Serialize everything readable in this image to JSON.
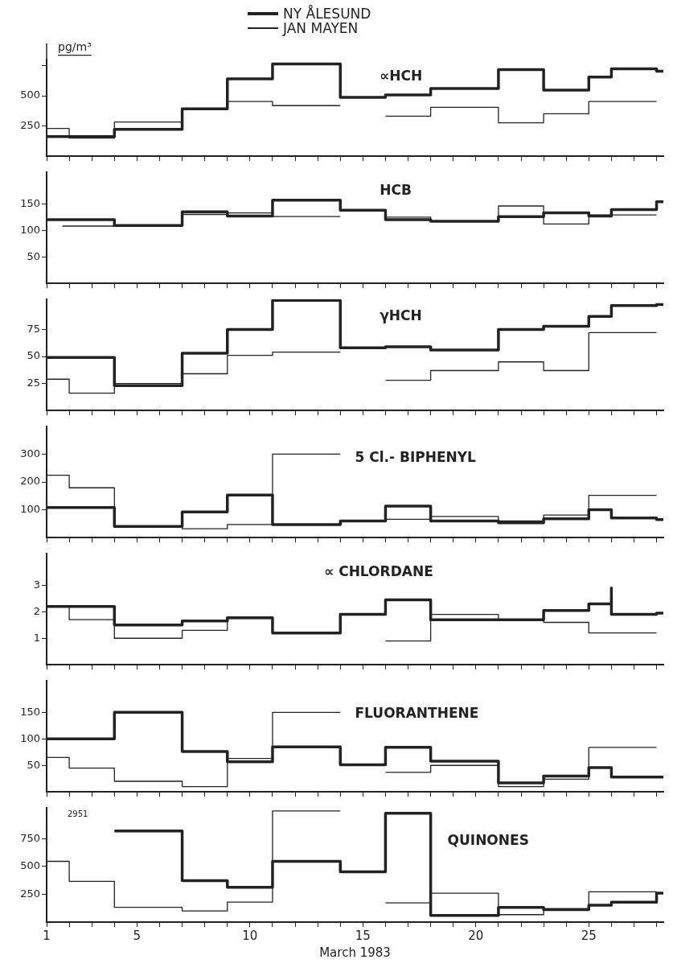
{
  "chart_data": [
    {
      "type": "step",
      "title": "∝HCH",
      "ylabel": "pg/m³",
      "legend": "top",
      "tick_labels": "y",
      "xlim": [
        1,
        28.3
      ],
      "xticks": [
        1,
        {
          "value": 2,
          "label": null
        },
        {
          "value": 3,
          "label": null
        },
        {
          "value": 4,
          "label": null
        },
        5,
        {
          "value": 6,
          "label": null
        },
        {
          "value": 7,
          "label": null
        },
        {
          "value": 8,
          "label": null
        },
        {
          "value": 9,
          "label": null
        },
        10,
        {
          "value": 11,
          "label": null
        },
        {
          "value": 12,
          "label": null
        },
        {
          "value": 13,
          "label": null
        },
        {
          "value": 14,
          "label": null
        },
        15,
        {
          "value": 16,
          "label": null
        },
        {
          "value": 17,
          "label": null
        },
        {
          "value": 18,
          "label": null
        },
        {
          "value": 19,
          "label": null
        },
        20,
        {
          "value": 21,
          "label": null
        },
        {
          "value": 22,
          "label": null
        },
        {
          "value": 23,
          "label": null
        },
        {
          "value": 24,
          "label": null
        },
        25,
        {
          "value": 26,
          "label": null
        },
        {
          "value": 27,
          "label": null
        },
        {
          "value": 28,
          "label": null
        }
      ],
      "ylim": [
        0,
        800
      ],
      "yticks": [
        250,
        500,
        {
          "value": 750,
          "label": null
        }
      ],
      "series": [
        {
          "name": "NY ÅLESUND",
          "color": "#222222",
          "x": [
            1,
            4,
            7,
            9,
            11,
            14,
            16,
            18,
            21,
            23,
            25,
            26,
            28,
            28.3
          ],
          "values": [
            162,
            223,
            392,
            640,
            763,
            487,
            507,
            560,
            716,
            547,
            655,
            723,
            703,
            703
          ]
        },
        {
          "name": "JAN MAYEN",
          "color": "#222222",
          "x": [
            1,
            2,
            4,
            7,
            9,
            11,
            14
          ],
          "values": [
            230,
            150,
            284,
            392,
            453,
            419,
            419
          ]
        },
        {
          "color": "#222222",
          "x": [
            16,
            18,
            21,
            23,
            25,
            28
          ],
          "values": [
            331,
            405,
            277,
            351,
            453,
            453
          ]
        }
      ]
    },
    {
      "type": "step",
      "title": "HCB",
      "tick_labels": "y",
      "xlim": [
        1,
        28.3
      ],
      "xticks": [
        1,
        {
          "value": 2,
          "label": null
        },
        {
          "value": 3,
          "label": null
        },
        {
          "value": 4,
          "label": null
        },
        5,
        {
          "value": 6,
          "label": null
        },
        {
          "value": 7,
          "label": null
        },
        {
          "value": 8,
          "label": null
        },
        {
          "value": 9,
          "label": null
        },
        10,
        {
          "value": 11,
          "label": null
        },
        {
          "value": 12,
          "label": null
        },
        {
          "value": 13,
          "label": null
        },
        {
          "value": 14,
          "label": null
        },
        15,
        {
          "value": 16,
          "label": null
        },
        {
          "value": 17,
          "label": null
        },
        {
          "value": 18,
          "label": null
        },
        {
          "value": 19,
          "label": null
        },
        20,
        {
          "value": 21,
          "label": null
        },
        {
          "value": 22,
          "label": null
        },
        {
          "value": 23,
          "label": null
        },
        {
          "value": 24,
          "label": null
        },
        25,
        {
          "value": 26,
          "label": null
        },
        {
          "value": 27,
          "label": null
        },
        {
          "value": 28,
          "label": null
        }
      ],
      "ylim": [
        0,
        210
      ],
      "yticks": [
        50,
        100,
        150
      ],
      "series": [
        {
          "color": "#222222",
          "x": [
            1,
            4,
            7,
            9,
            11,
            14,
            16,
            18,
            21,
            23,
            25,
            26,
            28,
            28.3
          ],
          "values": [
            120,
            109,
            135,
            127,
            157,
            138,
            120,
            117,
            126,
            133,
            127,
            139,
            154,
            154
          ]
        },
        {
          "color": "#222222",
          "x": [
            1.7,
            4,
            7,
            9,
            11,
            14
          ],
          "values": [
            108,
            108,
            130,
            133,
            126,
            126
          ]
        },
        {
          "color": "#222222",
          "x": [
            16,
            18,
            21,
            23,
            25,
            28
          ],
          "values": [
            125,
            117,
            146,
            112,
            129,
            129
          ]
        }
      ]
    },
    {
      "type": "step",
      "title": "γHCH",
      "tick_labels": "y",
      "xlim": [
        1,
        28.3
      ],
      "xticks": [
        1,
        {
          "value": 2,
          "label": null
        },
        {
          "value": 3,
          "label": null
        },
        {
          "value": 4,
          "label": null
        },
        5,
        {
          "value": 6,
          "label": null
        },
        {
          "value": 7,
          "label": null
        },
        {
          "value": 8,
          "label": null
        },
        {
          "value": 9,
          "label": null
        },
        10,
        {
          "value": 11,
          "label": null
        },
        {
          "value": 12,
          "label": null
        },
        {
          "value": 13,
          "label": null
        },
        {
          "value": 14,
          "label": null
        },
        15,
        {
          "value": 16,
          "label": null
        },
        {
          "value": 17,
          "label": null
        },
        {
          "value": 18,
          "label": null
        },
        {
          "value": 19,
          "label": null
        },
        20,
        {
          "value": 21,
          "label": null
        },
        {
          "value": 22,
          "label": null
        },
        {
          "value": 23,
          "label": null
        },
        {
          "value": 24,
          "label": null
        },
        25,
        {
          "value": 26,
          "label": null
        },
        {
          "value": 27,
          "label": null
        },
        {
          "value": 28,
          "label": null
        }
      ],
      "ylim": [
        0,
        103
      ],
      "yticks": [
        25,
        50,
        75
      ],
      "series": [
        {
          "color": "#222222",
          "x": [
            1,
            4,
            7,
            9,
            11,
            14,
            16,
            18,
            21,
            23,
            25,
            26,
            28,
            28.3
          ],
          "values": [
            49,
            23,
            53,
            75,
            102,
            58,
            59,
            56,
            75,
            78,
            87,
            97,
            98,
            98
          ]
        },
        {
          "color": "#222222",
          "x": [
            1,
            2,
            4,
            7,
            9,
            11,
            14
          ],
          "values": [
            29,
            16,
            25,
            34,
            51,
            54,
            54
          ]
        },
        {
          "color": "#222222",
          "x": [
            16,
            18,
            21,
            23,
            25,
            28
          ],
          "values": [
            28,
            37,
            45,
            37,
            72,
            72
          ]
        }
      ]
    },
    {
      "type": "step",
      "title": "5 Cl.- BIPHENYL",
      "tick_labels": "y",
      "xlim": [
        1,
        28.3
      ],
      "xticks": [
        1,
        {
          "value": 2,
          "label": null
        },
        {
          "value": 3,
          "label": null
        },
        {
          "value": 4,
          "label": null
        },
        5,
        {
          "value": 6,
          "label": null
        },
        {
          "value": 7,
          "label": null
        },
        {
          "value": 8,
          "label": null
        },
        {
          "value": 9,
          "label": null
        },
        10,
        {
          "value": 11,
          "label": null
        },
        {
          "value": 12,
          "label": null
        },
        {
          "value": 13,
          "label": null
        },
        {
          "value": 14,
          "label": null
        },
        15,
        {
          "value": 16,
          "label": null
        },
        {
          "value": 17,
          "label": null
        },
        {
          "value": 18,
          "label": null
        },
        {
          "value": 19,
          "label": null
        },
        20,
        {
          "value": 21,
          "label": null
        },
        {
          "value": 22,
          "label": null
        },
        {
          "value": 23,
          "label": null
        },
        {
          "value": 24,
          "label": null
        },
        25,
        {
          "value": 26,
          "label": null
        },
        {
          "value": 27,
          "label": null
        },
        {
          "value": 28,
          "label": null
        }
      ],
      "ylim": [
        0,
        400
      ],
      "yticks": [
        100,
        200,
        300
      ],
      "series": [
        {
          "color": "#222222",
          "x": [
            1,
            4,
            7,
            9,
            11,
            14,
            16,
            18,
            21,
            23,
            25,
            26,
            28,
            28.3
          ],
          "values": [
            108,
            40,
            92,
            153,
            47,
            60,
            113,
            60,
            53,
            68,
            100,
            71,
            65,
            65
          ]
        },
        {
          "color": "#222222",
          "x": [
            1,
            2,
            4,
            7,
            9,
            11,
            14
          ],
          "values": [
            224,
            179,
            42,
            32,
            47,
            300,
            300
          ]
        },
        {
          "color": "#222222",
          "x": [
            16,
            18,
            21,
            23,
            25,
            28
          ],
          "values": [
            66,
            76,
            60,
            81,
            152,
            152
          ]
        }
      ]
    },
    {
      "type": "step",
      "title": "∝ CHLORDANE",
      "tick_labels": "y",
      "xlim": [
        1,
        28.3
      ],
      "xticks": [
        1,
        {
          "value": 2,
          "label": null
        },
        {
          "value": 3,
          "label": null
        },
        {
          "value": 4,
          "label": null
        },
        5,
        {
          "value": 6,
          "label": null
        },
        {
          "value": 7,
          "label": null
        },
        {
          "value": 8,
          "label": null
        },
        {
          "value": 9,
          "label": null
        },
        10,
        {
          "value": 11,
          "label": null
        },
        {
          "value": 12,
          "label": null
        },
        {
          "value": 13,
          "label": null
        },
        {
          "value": 14,
          "label": null
        },
        15,
        {
          "value": 16,
          "label": null
        },
        {
          "value": 17,
          "label": null
        },
        {
          "value": 18,
          "label": null
        },
        {
          "value": 19,
          "label": null
        },
        20,
        {
          "value": 21,
          "label": null
        },
        {
          "value": 22,
          "label": null
        },
        {
          "value": 23,
          "label": null
        },
        {
          "value": 24,
          "label": null
        },
        25,
        {
          "value": 26,
          "label": null
        },
        {
          "value": 27,
          "label": null
        },
        {
          "value": 28,
          "label": null
        }
      ],
      "ylim": [
        0,
        4.2
      ],
      "yticks": [
        1,
        2,
        3
      ],
      "series": [
        {
          "color": "#222222",
          "x": [
            1,
            4,
            7,
            9,
            11,
            14,
            16,
            18,
            21,
            23,
            25,
            26,
            26,
            28,
            28.3
          ],
          "values": [
            2.2,
            1.5,
            1.65,
            1.77,
            1.2,
            1.9,
            2.45,
            1.7,
            1.7,
            2.05,
            2.3,
            2.9,
            1.9,
            1.95,
            1.95
          ]
        },
        {
          "color": "#222222",
          "x": [
            1,
            2,
            4,
            7,
            9,
            11,
            14
          ],
          "values": [
            2.2,
            1.7,
            1.0,
            1.3,
            1.75,
            1.2,
            1.2
          ]
        },
        {
          "color": "#222222",
          "x": [
            16,
            18,
            21,
            23,
            25,
            28
          ],
          "values": [
            0.9,
            1.9,
            1.7,
            1.6,
            1.2,
            1.2
          ]
        }
      ]
    },
    {
      "type": "step",
      "title": "FLUORANTHENE",
      "tick_labels": "y",
      "xlim": [
        1,
        28.3
      ],
      "xticks": [
        1,
        {
          "value": 2,
          "label": null
        },
        {
          "value": 3,
          "label": null
        },
        {
          "value": 4,
          "label": null
        },
        5,
        {
          "value": 6,
          "label": null
        },
        {
          "value": 7,
          "label": null
        },
        {
          "value": 8,
          "label": null
        },
        {
          "value": 9,
          "label": null
        },
        10,
        {
          "value": 11,
          "label": null
        },
        {
          "value": 12,
          "label": null
        },
        {
          "value": 13,
          "label": null
        },
        {
          "value": 14,
          "label": null
        },
        15,
        {
          "value": 16,
          "label": null
        },
        {
          "value": 17,
          "label": null
        },
        {
          "value": 18,
          "label": null
        },
        {
          "value": 19,
          "label": null
        },
        20,
        {
          "value": 21,
          "label": null
        },
        {
          "value": 22,
          "label": null
        },
        {
          "value": 23,
          "label": null
        },
        {
          "value": 24,
          "label": null
        },
        25,
        {
          "value": 26,
          "label": null
        },
        {
          "value": 27,
          "label": null
        },
        {
          "value": 28,
          "label": null
        }
      ],
      "ylim": [
        0,
        210
      ],
      "yticks": [
        50,
        100,
        150
      ],
      "series": [
        {
          "color": "#222222",
          "x": [
            1,
            4,
            7,
            9,
            11,
            14,
            16,
            18,
            21,
            23,
            25,
            26,
            28.3
          ],
          "values": [
            100,
            150,
            76,
            57,
            85,
            51,
            84,
            58,
            17,
            30,
            46,
            28,
            28
          ]
        },
        {
          "color": "#222222",
          "x": [
            1,
            2,
            4,
            7,
            9,
            11,
            14
          ],
          "values": [
            65,
            45,
            20,
            10,
            63,
            150,
            150
          ]
        },
        {
          "color": "#222222",
          "x": [
            16,
            18,
            21,
            23,
            25,
            28
          ],
          "values": [
            37,
            50,
            10,
            24,
            84,
            84
          ]
        }
      ]
    },
    {
      "type": "step",
      "title": "QUINONES",
      "xlabel": "March 1983",
      "annotations": [
        "2951"
      ],
      "xlim": [
        1,
        28.3
      ],
      "xticks": [
        1,
        {
          "value": 2,
          "label": null
        },
        {
          "value": 3,
          "label": null
        },
        {
          "value": 4,
          "label": null
        },
        5,
        {
          "value": 6,
          "label": null
        },
        {
          "value": 7,
          "label": null
        },
        {
          "value": 8,
          "label": null
        },
        {
          "value": 9,
          "label": null
        },
        10,
        {
          "value": 11,
          "label": null
        },
        {
          "value": 12,
          "label": null
        },
        {
          "value": 13,
          "label": null
        },
        {
          "value": 14,
          "label": null
        },
        15,
        {
          "value": 16,
          "label": null
        },
        {
          "value": 17,
          "label": null
        },
        {
          "value": 18,
          "label": null
        },
        {
          "value": 19,
          "label": null
        },
        20,
        {
          "value": 21,
          "label": null
        },
        {
          "value": 22,
          "label": null
        },
        {
          "value": 23,
          "label": null
        },
        {
          "value": 24,
          "label": null
        },
        25,
        {
          "value": 26,
          "label": null
        },
        {
          "value": 27,
          "label": null
        },
        {
          "value": 28,
          "label": null
        }
      ],
      "ylim": [
        0,
        1030
      ],
      "yticks": [
        250,
        500,
        750
      ],
      "series": [
        {
          "color": "#222222",
          "x": [
            4,
            7,
            9,
            11,
            14,
            16,
            18,
            21,
            23,
            25,
            26,
            28,
            28.3
          ],
          "values": [
            820,
            373,
            313,
            547,
            453,
            980,
            60,
            133,
            113,
            153,
            180,
            260,
            260
          ]
        },
        {
          "color": "#222222",
          "x": [
            1,
            2,
            4,
            7,
            9,
            11,
            14
          ],
          "values": [
            547,
            367,
            133,
            100,
            180,
            1000,
            1000
          ]
        },
        {
          "color": "#222222",
          "x": [
            16,
            18,
            21,
            23,
            25,
            28
          ],
          "values": [
            173,
            260,
            67,
            120,
            273,
            273
          ]
        }
      ]
    }
  ]
}
